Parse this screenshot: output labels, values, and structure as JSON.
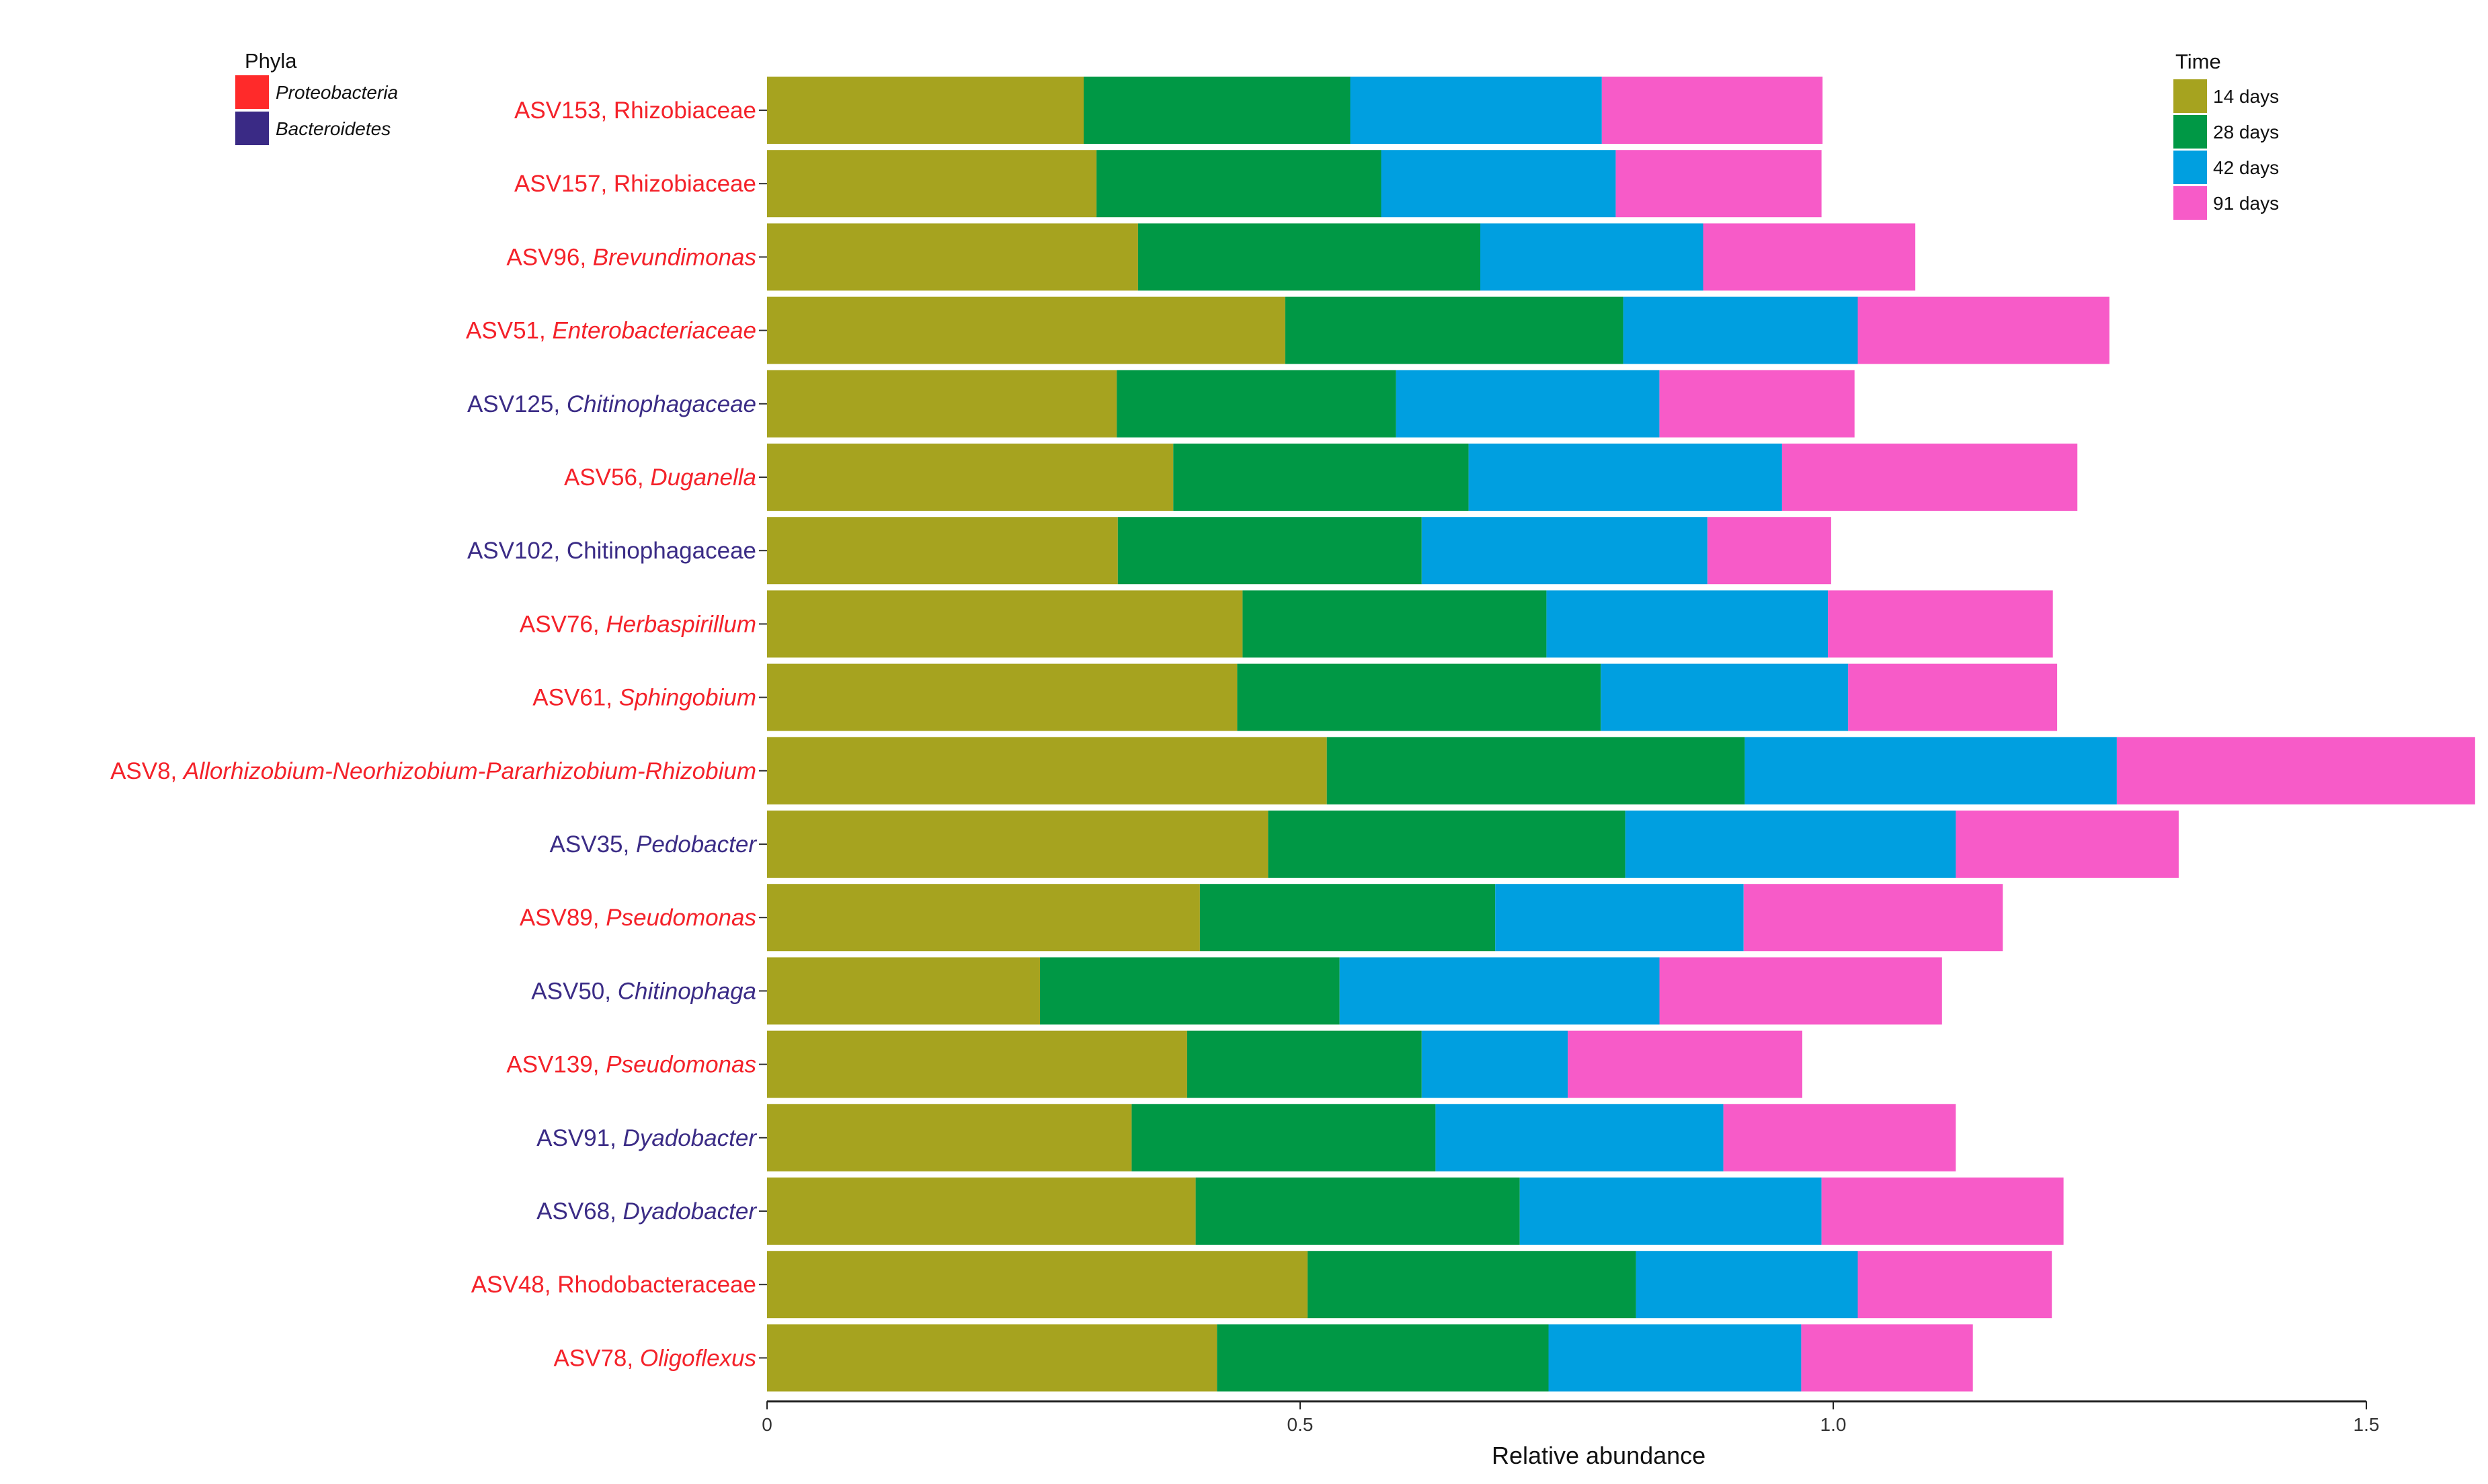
{
  "chart_data": {
    "type": "bar",
    "orientation": "horizontal",
    "stacked": true,
    "xlabel": "Relative abundance",
    "ylabel": "",
    "xlim": [
      0,
      1.5
    ],
    "x_ticks": [
      0,
      0.5,
      1.0,
      1.5
    ],
    "x_tick_labels": [
      "0",
      "0.5",
      "1.0",
      "1.5"
    ],
    "grid": false,
    "categories": [
      {
        "id": "ASV153",
        "taxon": "Rhizobiaceae",
        "italic": false,
        "phylum": "Proteobacteria"
      },
      {
        "id": "ASV157",
        "taxon": "Rhizobiaceae",
        "italic": false,
        "phylum": "Proteobacteria"
      },
      {
        "id": "ASV96",
        "taxon": "Brevundimonas",
        "italic": true,
        "phylum": "Proteobacteria"
      },
      {
        "id": "ASV51",
        "taxon": "Enterobacteriaceae",
        "italic": true,
        "phylum": "Proteobacteria"
      },
      {
        "id": "ASV125",
        "taxon": "Chitinophagaceae",
        "italic": true,
        "phylum": "Bacteroidetes"
      },
      {
        "id": "ASV56",
        "taxon": "Duganella",
        "italic": true,
        "phylum": "Proteobacteria"
      },
      {
        "id": "ASV102",
        "taxon": "Chitinophagaceae",
        "italic": false,
        "phylum": "Bacteroidetes"
      },
      {
        "id": "ASV76",
        "taxon": "Herbaspirillum",
        "italic": true,
        "phylum": "Proteobacteria"
      },
      {
        "id": "ASV61",
        "taxon": "Sphingobium",
        "italic": true,
        "phylum": "Proteobacteria"
      },
      {
        "id": "ASV8",
        "taxon": "Allorhizobium-Neorhizobium-Pararhizobium-Rhizobium",
        "italic": true,
        "phylum": "Proteobacteria"
      },
      {
        "id": "ASV35",
        "taxon": "Pedobacter",
        "italic": true,
        "phylum": "Bacteroidetes"
      },
      {
        "id": "ASV89",
        "taxon": "Pseudomonas",
        "italic": true,
        "phylum": "Proteobacteria"
      },
      {
        "id": "ASV50",
        "taxon": "Chitinophaga",
        "italic": true,
        "phylum": "Bacteroidetes"
      },
      {
        "id": "ASV139",
        "taxon": "Pseudomonas",
        "italic": true,
        "phylum": "Proteobacteria"
      },
      {
        "id": "ASV91",
        "taxon": "Dyadobacter",
        "italic": true,
        "phylum": "Bacteroidetes"
      },
      {
        "id": "ASV68",
        "taxon": "Dyadobacter",
        "italic": true,
        "phylum": "Bacteroidetes"
      },
      {
        "id": "ASV48",
        "taxon": "Rhodobacteraceae",
        "italic": false,
        "phylum": "Proteobacteria"
      },
      {
        "id": "ASV78",
        "taxon": "Oligoflexus",
        "italic": true,
        "phylum": "Proteobacteria"
      }
    ],
    "series": [
      {
        "name": "14 days",
        "color": "#A6A31F",
        "values": [
          0.297,
          0.309,
          0.348,
          0.486,
          0.328,
          0.381,
          0.329,
          0.446,
          0.441,
          0.525,
          0.47,
          0.406,
          0.256,
          0.394,
          0.342,
          0.402,
          0.507,
          0.422
        ]
      },
      {
        "name": "28 days",
        "color": "#009845",
        "values": [
          0.25,
          0.267,
          0.321,
          0.317,
          0.262,
          0.277,
          0.285,
          0.285,
          0.341,
          0.392,
          0.335,
          0.277,
          0.281,
          0.22,
          0.285,
          0.304,
          0.308,
          0.311
        ]
      },
      {
        "name": "42 days",
        "color": "#009FE0",
        "values": [
          0.236,
          0.22,
          0.209,
          0.22,
          0.247,
          0.294,
          0.268,
          0.264,
          0.232,
          0.349,
          0.31,
          0.233,
          0.3,
          0.137,
          0.27,
          0.283,
          0.208,
          0.237
        ]
      },
      {
        "name": "91 days",
        "color": "#F75BC8",
        "values": [
          0.207,
          0.193,
          0.199,
          0.236,
          0.183,
          0.277,
          0.116,
          0.211,
          0.196,
          0.336,
          0.209,
          0.243,
          0.265,
          0.22,
          0.218,
          0.227,
          0.182,
          0.161
        ]
      }
    ],
    "phyla_legend": {
      "title": "Phyla",
      "placement": "top-left",
      "entries": [
        {
          "name": "Proteobacteria",
          "color": "#FF2A2A"
        },
        {
          "name": "Bacteroidetes",
          "color": "#3A2A85"
        }
      ]
    },
    "time_legend": {
      "title": "Time",
      "placement": "top-right"
    },
    "label_colors": {
      "Proteobacteria": "#F4222A",
      "Bacteroidetes": "#3B2C86"
    }
  }
}
